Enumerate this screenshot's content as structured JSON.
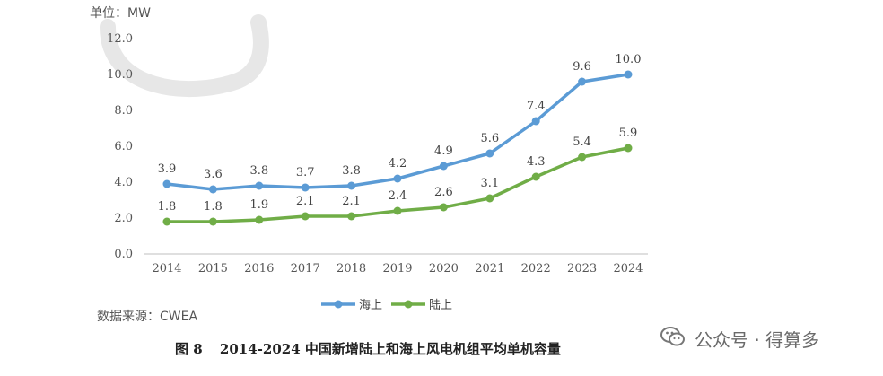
{
  "header": {
    "unit": "单位：MW"
  },
  "footer": {
    "source": "数据来源：CWEA",
    "caption_num": "图 8",
    "caption_text": "2014-2024 中国新增陆上和海上风电机组平均单机容量"
  },
  "watermark": {
    "icon": "wechat-icon",
    "text": "公众号 · 得算多"
  },
  "chart_data": {
    "type": "line",
    "title": "",
    "xlabel": "",
    "ylabel": "单位：MW",
    "x": [
      "2014",
      "2015",
      "2016",
      "2017",
      "2018",
      "2019",
      "2020",
      "2021",
      "2022",
      "2023",
      "2024"
    ],
    "ylim": [
      0,
      12
    ],
    "yticks": [
      "0.0",
      "2.0",
      "4.0",
      "6.0",
      "8.0",
      "10.0",
      "12.0"
    ],
    "grid": false,
    "legend_position": "bottom-center",
    "series": [
      {
        "name": "海上",
        "color": "#5b9bd5",
        "values": [
          3.9,
          3.6,
          3.8,
          3.7,
          3.8,
          4.2,
          4.9,
          5.6,
          7.4,
          9.6,
          10.0
        ],
        "labels": [
          "3.9",
          "3.6",
          "3.8",
          "3.7",
          "3.8",
          "4.2",
          "4.9",
          "5.6",
          "7.4",
          "9.6",
          "10.0"
        ]
      },
      {
        "name": "陆上",
        "color": "#70ad47",
        "values": [
          1.8,
          1.8,
          1.9,
          2.1,
          2.1,
          2.4,
          2.6,
          3.1,
          4.3,
          5.4,
          5.9
        ],
        "labels": [
          "1.8",
          "1.8",
          "1.9",
          "2.1",
          "2.1",
          "2.4",
          "2.6",
          "3.1",
          "4.3",
          "5.4",
          "5.9"
        ]
      }
    ]
  }
}
